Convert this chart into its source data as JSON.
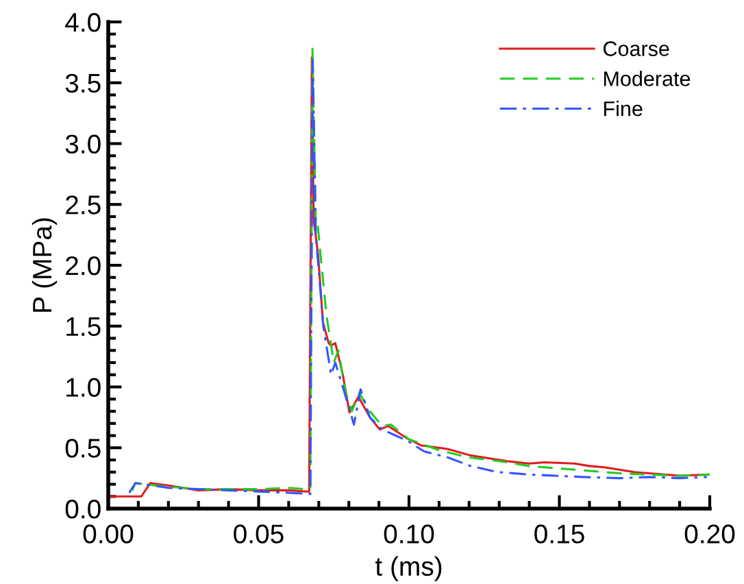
{
  "chart_data": {
    "type": "line",
    "xlabel": "t (ms)",
    "ylabel": "P (MPa)",
    "xlim": [
      0,
      0.2
    ],
    "ylim": [
      0,
      4
    ],
    "xticks": [
      {
        "value": 0,
        "label": "0.00"
      },
      {
        "value": 0.05,
        "label": "0.05"
      },
      {
        "value": 0.1,
        "label": "0.10"
      },
      {
        "value": 0.15,
        "label": "0.15"
      },
      {
        "value": 0.2,
        "label": "0.20"
      }
    ],
    "yticks": [
      {
        "value": 0,
        "label": "0.0"
      },
      {
        "value": 0.5,
        "label": "0.5"
      },
      {
        "value": 1,
        "label": "1.0"
      },
      {
        "value": 1.5,
        "label": "1.5"
      },
      {
        "value": 2,
        "label": "2.0"
      },
      {
        "value": 2.5,
        "label": "2.5"
      },
      {
        "value": 3,
        "label": "3.0"
      },
      {
        "value": 3.5,
        "label": "3.5"
      },
      {
        "value": 4,
        "label": "4.0"
      }
    ],
    "legend": "top right",
    "grid": false,
    "series": [
      {
        "name": "Coarse",
        "color": "#e41a1c",
        "line_style": "solid",
        "x": [
          0,
          0.011,
          0.014,
          0.02,
          0.025,
          0.03,
          0.04,
          0.05,
          0.06,
          0.0665,
          0.0668,
          0.0677,
          0.0683,
          0.0698,
          0.0714,
          0.0733,
          0.0741,
          0.0755,
          0.078,
          0.0802,
          0.0832,
          0.087,
          0.0903,
          0.093,
          0.0992,
          0.104,
          0.1128,
          0.12,
          0.1326,
          0.14,
          0.145,
          0.155,
          0.16,
          0.165,
          0.175,
          0.185,
          0.19,
          0.1994
        ],
        "values": [
          0.1,
          0.1,
          0.21,
          0.19,
          0.17,
          0.15,
          0.16,
          0.15,
          0.15,
          0.14,
          0.14,
          3.71,
          2.38,
          2.08,
          1.53,
          1.36,
          1.34,
          1.36,
          1.1,
          0.79,
          0.92,
          0.75,
          0.65,
          0.68,
          0.58,
          0.52,
          0.49,
          0.44,
          0.39,
          0.37,
          0.38,
          0.37,
          0.35,
          0.34,
          0.3,
          0.28,
          0.27,
          0.28
        ]
      },
      {
        "name": "Moderate",
        "color": "#22cc22",
        "line_style": "dashed",
        "x": [
          0.008,
          0.009,
          0.012,
          0.02,
          0.03,
          0.04,
          0.05,
          0.06,
          0.066,
          0.0672,
          0.0679,
          0.069,
          0.0695,
          0.0725,
          0.075,
          0.0765,
          0.079,
          0.081,
          0.0835,
          0.087,
          0.091,
          0.094,
          0.1,
          0.11,
          0.12,
          0.13,
          0.14,
          0.15,
          0.16,
          0.17,
          0.18,
          0.19,
          0.2
        ],
        "values": [
          0.15,
          0.21,
          0.2,
          0.18,
          0.16,
          0.16,
          0.16,
          0.17,
          0.16,
          0.16,
          3.78,
          2.35,
          2.37,
          1.6,
          1.2,
          1.3,
          0.95,
          0.8,
          0.95,
          0.8,
          0.68,
          0.69,
          0.57,
          0.48,
          0.42,
          0.39,
          0.35,
          0.33,
          0.31,
          0.29,
          0.28,
          0.27,
          0.28
        ]
      },
      {
        "name": "Fine",
        "color": "#3355ff",
        "line_style": "dashdot",
        "x": [
          0.007,
          0.009,
          0.012,
          0.02,
          0.03,
          0.04,
          0.05,
          0.06,
          0.067,
          0.0672,
          0.068,
          0.069,
          0.0715,
          0.0741,
          0.0755,
          0.078,
          0.0817,
          0.0839,
          0.087,
          0.091,
          0.0993,
          0.105,
          0.113,
          0.1205,
          0.1295,
          0.14,
          0.1575,
          0.17,
          0.18,
          0.19,
          0.199
        ],
        "values": [
          0.13,
          0.21,
          0.2,
          0.17,
          0.16,
          0.15,
          0.14,
          0.13,
          0.12,
          0.12,
          3.69,
          2.26,
          1.5,
          1.1,
          1.2,
          1.0,
          0.69,
          0.98,
          0.75,
          0.65,
          0.56,
          0.47,
          0.42,
          0.35,
          0.3,
          0.28,
          0.26,
          0.25,
          0.26,
          0.25,
          0.26
        ]
      }
    ]
  }
}
